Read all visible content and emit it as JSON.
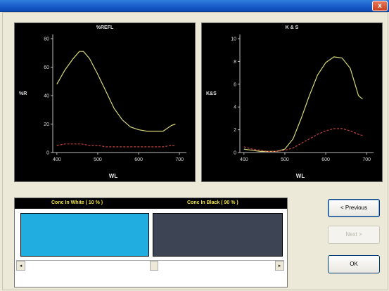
{
  "window": {
    "close_label": "x"
  },
  "charts": [
    {
      "title": "%REFL",
      "ylabel": "%R",
      "xlabel": "WL",
      "x_ticks": [
        "400",
        "500",
        "600",
        "700"
      ],
      "y_ticks": [
        "0",
        "20",
        "40",
        "60",
        "80"
      ]
    },
    {
      "title": "K & S",
      "ylabel": "K&S",
      "xlabel": "WL",
      "x_ticks": [
        "400",
        "500",
        "600",
        "700"
      ],
      "y_ticks": [
        "0",
        "2",
        "4",
        "6",
        "8",
        "10"
      ]
    }
  ],
  "chart_data": [
    {
      "type": "line",
      "title": "%REFL",
      "xlabel": "WL",
      "ylabel": "%R",
      "xlim": [
        390,
        710
      ],
      "ylim": [
        0,
        80
      ],
      "grid": false,
      "series": [
        {
          "color": "#d9d77a",
          "style": "solid",
          "x": [
            400,
            420,
            440,
            455,
            465,
            480,
            500,
            520,
            540,
            560,
            580,
            600,
            620,
            640,
            660,
            680,
            690
          ],
          "y": [
            48,
            58,
            66,
            71,
            71,
            66,
            55,
            43,
            31,
            23,
            18,
            16,
            15,
            15,
            15,
            19,
            20
          ]
        },
        {
          "color": "#c04040",
          "style": "dashed",
          "x": [
            400,
            420,
            440,
            460,
            480,
            500,
            520,
            540,
            560,
            580,
            600,
            620,
            640,
            660,
            680,
            690
          ],
          "y": [
            5,
            6,
            6,
            6,
            5,
            5,
            4,
            4,
            4,
            4,
            4,
            4,
            4,
            4,
            5,
            5
          ]
        }
      ]
    },
    {
      "type": "line",
      "title": "K & S",
      "xlabel": "WL",
      "ylabel": "K&S",
      "xlim": [
        390,
        710
      ],
      "ylim": [
        0,
        10
      ],
      "grid": false,
      "series": [
        {
          "color": "#d9d77a",
          "style": "solid",
          "x": [
            400,
            420,
            440,
            460,
            480,
            500,
            520,
            540,
            560,
            580,
            600,
            620,
            640,
            660,
            680,
            690
          ],
          "y": [
            0.3,
            0.2,
            0.1,
            0.1,
            0.1,
            0.3,
            1.2,
            3.0,
            5.0,
            6.8,
            7.9,
            8.4,
            8.3,
            7.4,
            5.0,
            4.7
          ]
        },
        {
          "color": "#c04040",
          "style": "dashed",
          "x": [
            400,
            420,
            440,
            460,
            480,
            500,
            520,
            540,
            560,
            580,
            600,
            620,
            640,
            660,
            680,
            690
          ],
          "y": [
            0.5,
            0.3,
            0.2,
            0.1,
            0.1,
            0.2,
            0.4,
            0.8,
            1.2,
            1.6,
            1.9,
            2.1,
            2.1,
            1.9,
            1.6,
            1.5
          ]
        }
      ]
    }
  ],
  "conc": {
    "white_label": "Conc In White ( 10 % )",
    "black_label": "Conc In Black ( 90 % )",
    "white_color": "#22ade0",
    "black_color": "#3d4453"
  },
  "buttons": {
    "previous": "< Previous",
    "next": "Next >",
    "ok": "OK"
  },
  "scroll": {
    "left_arrow": "◂",
    "right_arrow": "▸"
  }
}
